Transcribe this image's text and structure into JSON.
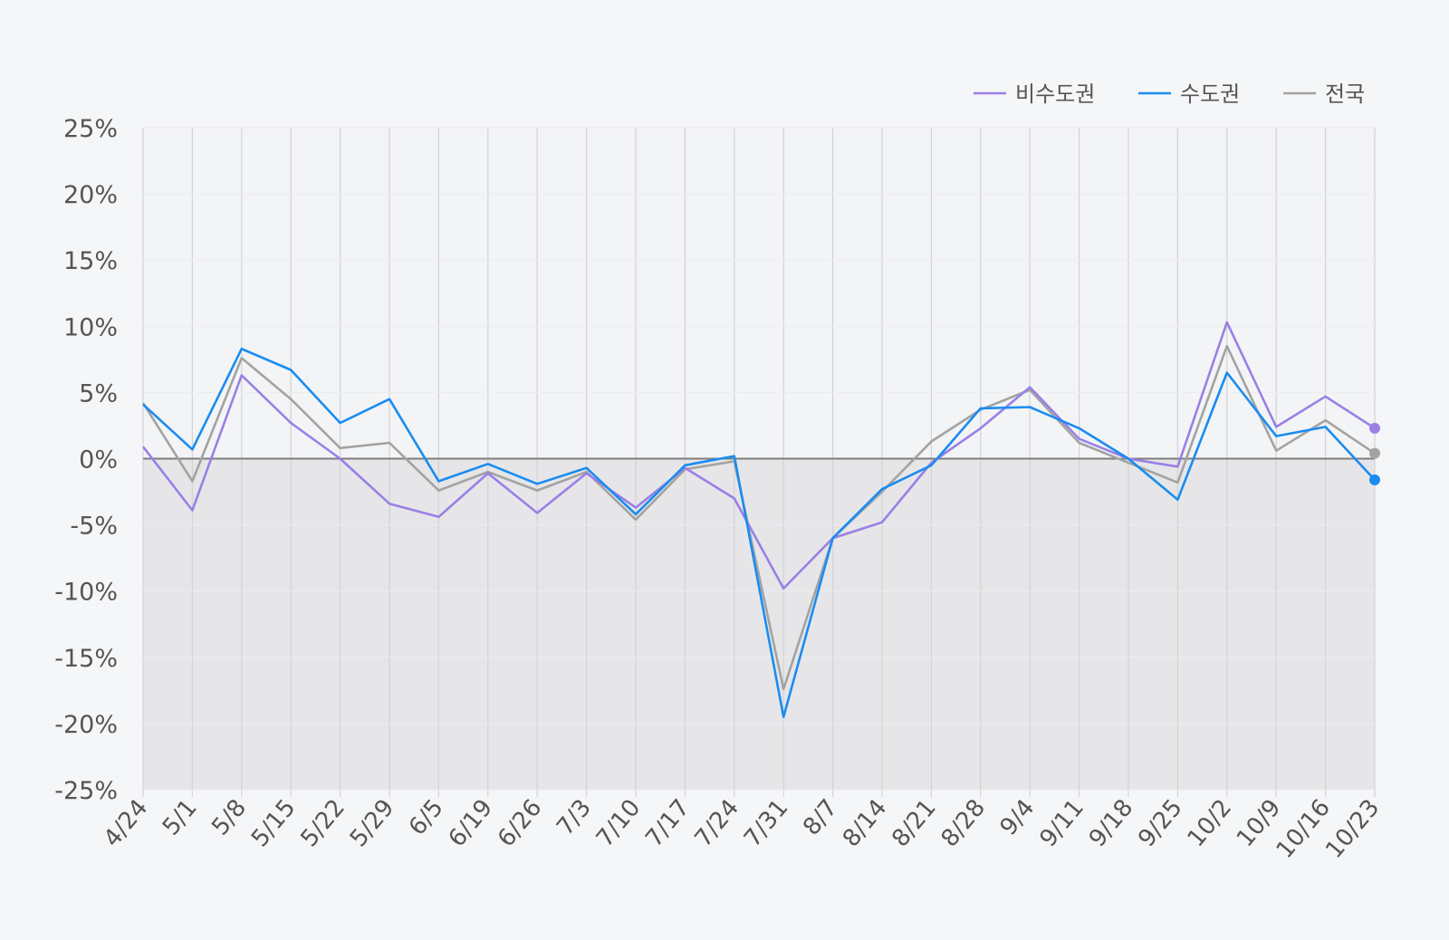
{
  "chart_data": {
    "type": "line",
    "title": "",
    "xlabel": "",
    "ylabel": "",
    "x": [
      "4/24",
      "5/1",
      "5/8",
      "5/15",
      "5/22",
      "5/29",
      "6/5",
      "6/19",
      "6/26",
      "7/3",
      "7/10",
      "7/17",
      "7/24",
      "7/31",
      "8/7",
      "8/14",
      "8/21",
      "8/28",
      "9/4",
      "9/11",
      "9/18",
      "9/25",
      "10/2",
      "10/9",
      "10/16",
      "10/23"
    ],
    "ylim": [
      -25,
      25
    ],
    "yticks": [
      25,
      20,
      15,
      10,
      5,
      0,
      -5,
      -10,
      -15,
      -20,
      -25
    ],
    "ytick_labels": [
      "25%",
      "20%",
      "15%",
      "10%",
      "5%",
      "0%",
      "-5%",
      "-10%",
      "-15%",
      "-20%",
      "-25%"
    ],
    "grid": "vertical",
    "negative_region_shaded": true,
    "legend_position": "top-right",
    "series": [
      {
        "name": "비수도권",
        "color": "#9b7fe6",
        "values": [
          0.9,
          -3.9,
          6.3,
          2.7,
          0.0,
          -3.4,
          -4.4,
          -1.1,
          -4.1,
          -1.1,
          -3.7,
          -0.7,
          -3.0,
          -9.8,
          -6.0,
          -4.8,
          -0.3,
          2.3,
          5.4,
          1.5,
          0.0,
          -0.6,
          10.3,
          2.4,
          4.7,
          2.3
        ]
      },
      {
        "name": "수도권",
        "color": "#1a8cf0",
        "values": [
          4.1,
          0.7,
          8.3,
          6.7,
          2.7,
          4.5,
          -1.7,
          -0.4,
          -1.9,
          -0.7,
          -4.2,
          -0.5,
          0.2,
          -19.5,
          -6.0,
          -2.3,
          -0.5,
          3.8,
          3.9,
          2.3,
          0.0,
          -3.1,
          6.5,
          1.7,
          2.4,
          -1.6
        ]
      },
      {
        "name": "전국",
        "color": "#a3a3a3",
        "values": [
          4.2,
          -1.7,
          7.6,
          4.5,
          0.8,
          1.2,
          -2.4,
          -1.0,
          -2.4,
          -1.0,
          -4.6,
          -0.8,
          -0.2,
          -17.4,
          -6.0,
          -2.5,
          1.3,
          3.7,
          5.2,
          1.2,
          -0.3,
          -1.8,
          8.5,
          0.6,
          2.9,
          0.4
        ]
      }
    ]
  }
}
